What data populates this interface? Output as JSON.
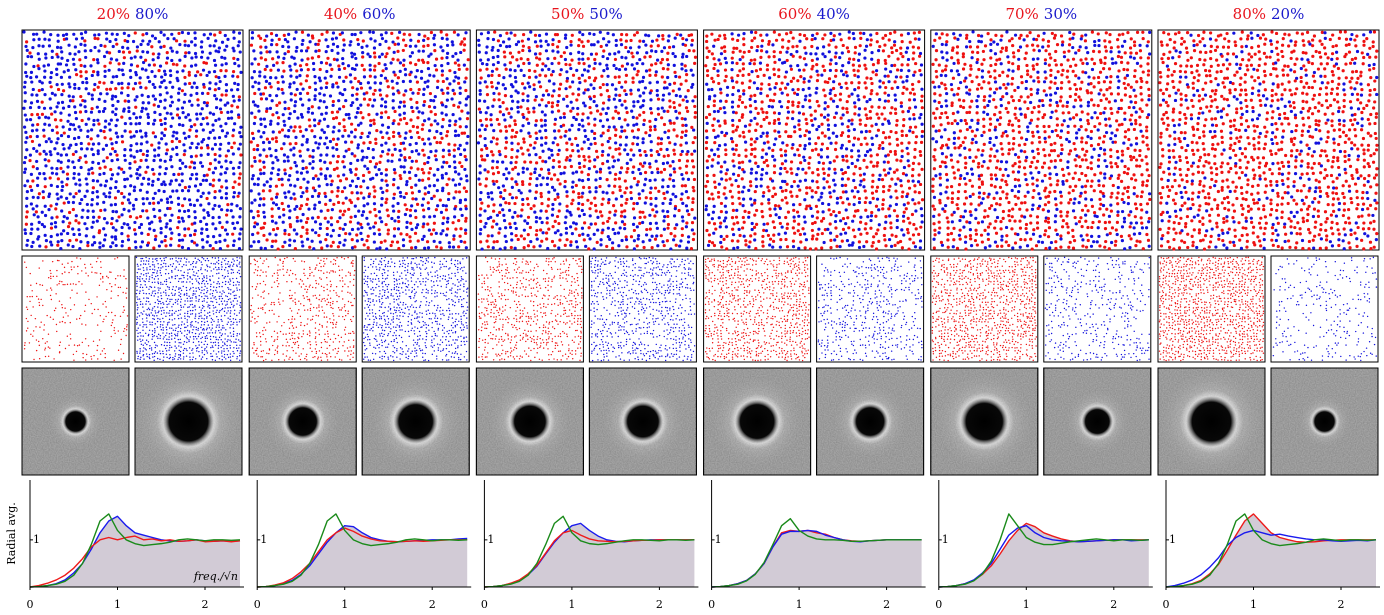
{
  "chart_data": [
    {
      "type": "line",
      "title_parts": [
        {
          "label": "20%",
          "value": 20,
          "color": "#e8141c"
        },
        {
          "label": "80%",
          "value": 80,
          "color": "#1a1acc"
        }
      ],
      "ylabel": "Radial avg.",
      "xlabel": "freq./√n",
      "x": [
        0,
        0.1,
        0.2,
        0.3,
        0.4,
        0.5,
        0.6,
        0.7,
        0.8,
        0.9,
        1.0,
        1.1,
        1.2,
        1.3,
        1.4,
        1.5,
        1.6,
        1.7,
        1.8,
        1.9,
        2.0,
        2.1,
        2.2,
        2.3,
        2.4
      ],
      "xlim": [
        0,
        2.4
      ],
      "xticks": [
        0,
        1,
        2
      ],
      "ylim": [
        0,
        2.27
      ],
      "yticks": [
        1
      ],
      "series": [
        {
          "color": "#1a1aee",
          "fill": "#d2cbd6",
          "values": [
            0,
            0.01,
            0.03,
            0.07,
            0.15,
            0.3,
            0.5,
            0.8,
            1.15,
            1.4,
            1.5,
            1.3,
            1.15,
            1.1,
            1.05,
            1.0,
            0.98,
            0.97,
            0.98,
            1.0,
            0.98,
            0.97,
            0.98,
            0.97,
            0.98
          ]
        },
        {
          "color": "#ee1a1a",
          "values": [
            0,
            0.03,
            0.08,
            0.15,
            0.25,
            0.4,
            0.6,
            0.85,
            1.0,
            1.05,
            1.0,
            1.05,
            1.08,
            1.0,
            1.02,
            0.98,
            1.0,
            0.97,
            0.98,
            1.0,
            0.96,
            0.97,
            0.98,
            0.96,
            0.98
          ]
        },
        {
          "color": "#1a8a1a",
          "values": [
            0,
            0.01,
            0.03,
            0.06,
            0.12,
            0.25,
            0.5,
            0.9,
            1.4,
            1.55,
            1.2,
            1.0,
            0.92,
            0.88,
            0.9,
            0.92,
            0.95,
            1.0,
            1.02,
            1.0,
            0.98,
            1.0,
            1.0,
            0.99,
            1.0
          ]
        }
      ]
    },
    {
      "type": "line",
      "title_parts": [
        {
          "label": "40%",
          "value": 40,
          "color": "#e8141c"
        },
        {
          "label": "60%",
          "value": 60,
          "color": "#1a1acc"
        }
      ],
      "x": [
        0,
        0.1,
        0.2,
        0.3,
        0.4,
        0.5,
        0.6,
        0.7,
        0.8,
        0.9,
        1.0,
        1.1,
        1.2,
        1.3,
        1.4,
        1.5,
        1.6,
        1.7,
        1.8,
        1.9,
        2.0,
        2.1,
        2.2,
        2.3,
        2.4
      ],
      "xlim": [
        0,
        2.4
      ],
      "xticks": [
        0,
        1,
        2
      ],
      "ylim": [
        0,
        2.27
      ],
      "yticks": [
        1
      ],
      "series": [
        {
          "color": "#1a1aee",
          "fill": "#d2cbd6",
          "values": [
            0,
            0.01,
            0.03,
            0.07,
            0.14,
            0.27,
            0.45,
            0.7,
            0.95,
            1.15,
            1.3,
            1.28,
            1.15,
            1.05,
            1.0,
            0.97,
            0.96,
            0.97,
            0.98,
            0.99,
            1.0,
            1.0,
            1.0,
            1.02,
            1.03
          ]
        },
        {
          "color": "#ee1a1a",
          "values": [
            0,
            0.01,
            0.04,
            0.09,
            0.18,
            0.32,
            0.5,
            0.75,
            1.0,
            1.15,
            1.25,
            1.18,
            1.08,
            1.02,
            0.98,
            0.97,
            0.96,
            0.97,
            0.98,
            0.97,
            0.98,
            0.99,
            1.0,
            1.0,
            1.0
          ]
        },
        {
          "color": "#1a8a1a",
          "values": [
            0,
            0.01,
            0.03,
            0.06,
            0.12,
            0.25,
            0.5,
            0.9,
            1.4,
            1.55,
            1.2,
            1.0,
            0.92,
            0.88,
            0.9,
            0.92,
            0.95,
            1.0,
            1.02,
            1.0,
            0.98,
            1.0,
            1.0,
            0.99,
            1.0
          ]
        }
      ]
    },
    {
      "type": "line",
      "title_parts": [
        {
          "label": "50%",
          "value": 50,
          "color": "#e8141c"
        },
        {
          "label": "50%",
          "value": 50,
          "color": "#1a1acc"
        }
      ],
      "x": [
        0,
        0.1,
        0.2,
        0.3,
        0.4,
        0.5,
        0.6,
        0.7,
        0.8,
        0.9,
        1.0,
        1.1,
        1.2,
        1.3,
        1.4,
        1.5,
        1.6,
        1.7,
        1.8,
        1.9,
        2.0,
        2.1,
        2.2,
        2.3,
        2.4
      ],
      "xlim": [
        0,
        2.4
      ],
      "xticks": [
        0,
        1,
        2
      ],
      "ylim": [
        0,
        2.27
      ],
      "yticks": [
        1
      ],
      "series": [
        {
          "color": "#1a1aee",
          "fill": "#d2cbd6",
          "values": [
            0,
            0.01,
            0.03,
            0.07,
            0.14,
            0.26,
            0.44,
            0.7,
            0.95,
            1.15,
            1.3,
            1.35,
            1.2,
            1.08,
            1.0,
            0.97,
            0.96,
            0.98,
            0.99,
            1.0,
            1.0,
            1.0,
            1.0,
            1.0,
            1.0
          ]
        },
        {
          "color": "#ee1a1a",
          "values": [
            0,
            0.01,
            0.03,
            0.08,
            0.15,
            0.28,
            0.46,
            0.72,
            0.98,
            1.15,
            1.2,
            1.1,
            1.02,
            0.98,
            0.97,
            0.96,
            0.97,
            0.98,
            0.99,
            0.99,
            1.0,
            1.0,
            1.0,
            1.0,
            1.0
          ]
        },
        {
          "color": "#1a8a1a",
          "values": [
            0,
            0.01,
            0.03,
            0.06,
            0.12,
            0.25,
            0.5,
            0.9,
            1.35,
            1.5,
            1.15,
            0.98,
            0.92,
            0.9,
            0.92,
            0.95,
            0.98,
            1.0,
            1.0,
            0.99,
            0.98,
            1.0,
            1.0,
            0.99,
            1.0
          ]
        }
      ]
    },
    {
      "type": "line",
      "title_parts": [
        {
          "label": "60%",
          "value": 60,
          "color": "#e8141c"
        },
        {
          "label": "40%",
          "value": 40,
          "color": "#1a1acc"
        }
      ],
      "x": [
        0,
        0.1,
        0.2,
        0.3,
        0.4,
        0.5,
        0.6,
        0.7,
        0.8,
        0.9,
        1.0,
        1.1,
        1.2,
        1.3,
        1.4,
        1.5,
        1.6,
        1.7,
        1.8,
        1.9,
        2.0,
        2.1,
        2.2,
        2.3,
        2.4
      ],
      "xlim": [
        0,
        2.4
      ],
      "xticks": [
        0,
        1,
        2
      ],
      "ylim": [
        0,
        2.27
      ],
      "yticks": [
        1
      ],
      "series": [
        {
          "color": "#ee1a1a",
          "fill": "#d2cbd6",
          "values": [
            0,
            0.01,
            0.03,
            0.07,
            0.14,
            0.28,
            0.5,
            0.85,
            1.15,
            1.2,
            1.18,
            1.2,
            1.15,
            1.12,
            1.05,
            1.0,
            0.98,
            0.97,
            0.98,
            0.99,
            1.0,
            1.0,
            1.0,
            1.0,
            1.0
          ]
        },
        {
          "color": "#1a1aee",
          "values": [
            0,
            0.01,
            0.03,
            0.07,
            0.14,
            0.28,
            0.5,
            0.85,
            1.12,
            1.18,
            1.18,
            1.2,
            1.18,
            1.1,
            1.05,
            1.0,
            0.97,
            0.96,
            0.98,
            0.99,
            1.0,
            1.0,
            1.0,
            1.0,
            1.0
          ]
        },
        {
          "color": "#1a8a1a",
          "values": [
            0,
            0.01,
            0.03,
            0.06,
            0.13,
            0.27,
            0.52,
            0.9,
            1.3,
            1.45,
            1.2,
            1.08,
            1.02,
            1.0,
            1.0,
            0.99,
            0.97,
            0.97,
            0.98,
            0.99,
            1.0,
            1.0,
            1.0,
            1.0,
            1.0
          ]
        }
      ]
    },
    {
      "type": "line",
      "title_parts": [
        {
          "label": "70%",
          "value": 70,
          "color": "#e8141c"
        },
        {
          "label": "30%",
          "value": 30,
          "color": "#1a1acc"
        }
      ],
      "x": [
        0,
        0.1,
        0.2,
        0.3,
        0.4,
        0.5,
        0.6,
        0.7,
        0.8,
        0.9,
        1.0,
        1.1,
        1.2,
        1.3,
        1.4,
        1.5,
        1.6,
        1.7,
        1.8,
        1.9,
        2.0,
        2.1,
        2.2,
        2.3,
        2.4
      ],
      "xlim": [
        0,
        2.4
      ],
      "xticks": [
        0,
        1,
        2
      ],
      "ylim": [
        0,
        2.27
      ],
      "yticks": [
        1
      ],
      "series": [
        {
          "color": "#ee1a1a",
          "fill": "#d2cbd6",
          "values": [
            0,
            0.01,
            0.03,
            0.07,
            0.14,
            0.27,
            0.45,
            0.7,
            0.98,
            1.2,
            1.35,
            1.28,
            1.15,
            1.08,
            1.02,
            0.98,
            0.96,
            0.97,
            0.98,
            0.99,
            1.0,
            1.0,
            1.0,
            1.0,
            1.0
          ]
        },
        {
          "color": "#1a1aee",
          "values": [
            0,
            0.01,
            0.03,
            0.07,
            0.15,
            0.3,
            0.5,
            0.8,
            1.1,
            1.25,
            1.3,
            1.15,
            1.05,
            1.0,
            0.98,
            0.97,
            0.96,
            0.97,
            0.98,
            0.99,
            1.0,
            1.0,
            0.98,
            0.99,
            1.0
          ]
        },
        {
          "color": "#1a8a1a",
          "values": [
            0,
            0.01,
            0.03,
            0.06,
            0.13,
            0.28,
            0.55,
            1.0,
            1.55,
            1.3,
            1.05,
            0.95,
            0.9,
            0.9,
            0.93,
            0.96,
            0.98,
            1.0,
            1.02,
            1.0,
            0.98,
            1.0,
            1.0,
            0.99,
            1.0
          ]
        }
      ]
    },
    {
      "type": "line",
      "title_parts": [
        {
          "label": "80%",
          "value": 80,
          "color": "#e8141c"
        },
        {
          "label": "20%",
          "value": 20,
          "color": "#1a1acc"
        }
      ],
      "x": [
        0,
        0.1,
        0.2,
        0.3,
        0.4,
        0.5,
        0.6,
        0.7,
        0.8,
        0.9,
        1.0,
        1.1,
        1.2,
        1.3,
        1.4,
        1.5,
        1.6,
        1.7,
        1.8,
        1.9,
        2.0,
        2.1,
        2.2,
        2.3,
        2.4
      ],
      "xlim": [
        0,
        2.4
      ],
      "xticks": [
        0,
        1,
        2
      ],
      "ylim": [
        0,
        2.27
      ],
      "yticks": [
        1
      ],
      "series": [
        {
          "color": "#ee1a1a",
          "fill": "#d2cbd6",
          "values": [
            0,
            0.01,
            0.03,
            0.07,
            0.14,
            0.28,
            0.48,
            0.78,
            1.1,
            1.4,
            1.55,
            1.35,
            1.15,
            1.05,
            1.0,
            0.96,
            0.95,
            0.96,
            0.98,
            0.99,
            1.0,
            1.0,
            1.0,
            1.0,
            1.0
          ]
        },
        {
          "color": "#1a1aee",
          "values": [
            0,
            0.03,
            0.08,
            0.15,
            0.26,
            0.42,
            0.62,
            0.88,
            1.05,
            1.15,
            1.2,
            1.15,
            1.1,
            1.12,
            1.08,
            1.05,
            1.02,
            1.0,
            1.0,
            0.98,
            0.97,
            0.98,
            0.99,
            0.98,
            1.0
          ]
        },
        {
          "color": "#1a8a1a",
          "values": [
            0,
            0.01,
            0.03,
            0.06,
            0.12,
            0.25,
            0.5,
            0.9,
            1.4,
            1.55,
            1.2,
            1.0,
            0.92,
            0.88,
            0.9,
            0.92,
            0.95,
            1.0,
            1.02,
            1.0,
            0.98,
            1.0,
            1.0,
            0.99,
            1.0
          ]
        }
      ]
    }
  ]
}
